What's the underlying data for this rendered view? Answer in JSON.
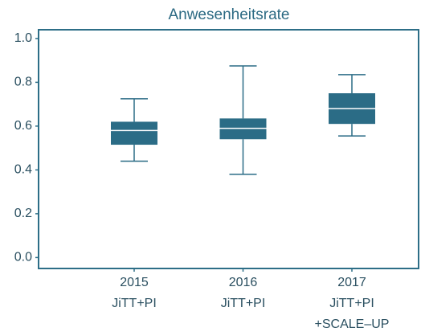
{
  "chart_data": {
    "type": "box",
    "title": "Anwesenheitsrate",
    "categories": [
      [
        "2015",
        "JiTT+PI"
      ],
      [
        "2016",
        "JiTT+PI"
      ],
      [
        "2017",
        "JiTT+PI",
        "+SCALE–UP"
      ]
    ],
    "series": [
      {
        "color": "#2b6c86",
        "median_color": "#ffffff",
        "min": [
          0.44,
          0.38,
          0.555
        ],
        "q1": [
          0.515,
          0.54,
          0.61
        ],
        "median": [
          0.58,
          0.59,
          0.68
        ],
        "q3": [
          0.62,
          0.635,
          0.75
        ],
        "max": [
          0.725,
          0.875,
          0.835
        ]
      }
    ],
    "ylim": [
      -0.05,
      1.04
    ],
    "yticks": [
      {
        "value": 0,
        "label": "0.0"
      },
      {
        "value": 0.2,
        "label": "0.2"
      },
      {
        "value": 0.4,
        "label": "0.4"
      },
      {
        "value": 0.6,
        "label": "0.6"
      },
      {
        "value": 0.8,
        "label": "0.8"
      },
      {
        "value": 1,
        "label": "1.0"
      }
    ],
    "frame_color": "#2d6e87"
  }
}
